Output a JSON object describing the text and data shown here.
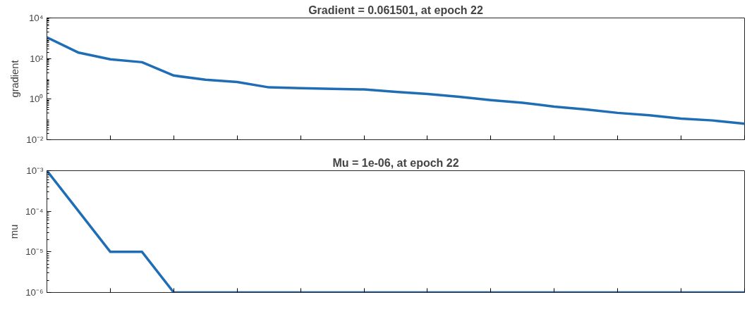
{
  "chart_data": [
    {
      "type": "line",
      "title": "Gradient = 0.061501, at epoch 22",
      "ylabel": "gradient",
      "log": "y",
      "grid": false,
      "marker": "none",
      "line_style": "solid",
      "tick_labels": "y",
      "categories": [
        null,
        null,
        null,
        null,
        null,
        null,
        null,
        null,
        null,
        null,
        null,
        null,
        null,
        null,
        null,
        null,
        null,
        null,
        null,
        null,
        null,
        null,
        null
      ],
      "series": [
        {
          "color": "#1f6eb5",
          "values": [
            1100,
            195,
            92,
            66,
            14.5,
            9,
            7,
            3.8,
            3.5,
            3.2,
            3.0,
            2.3,
            1.8,
            1.3,
            0.9,
            0.66,
            0.43,
            0.31,
            0.21,
            0.16,
            0.11,
            0.089,
            0.061501
          ]
        }
      ],
      "ylim": [
        0.01,
        10000
      ],
      "yticks": [
        {
          "value": 0.01,
          "label": "10⁻²"
        },
        {
          "value": 1,
          "label": "10⁰"
        },
        {
          "value": 100,
          "label": "10²"
        },
        {
          "value": 10000,
          "label": "10⁴"
        }
      ]
    },
    {
      "type": "line",
      "title": "Mu = 1e-06, at epoch 22",
      "ylabel": "mu",
      "log": "y",
      "grid": false,
      "marker": "none",
      "line_style": "solid",
      "tick_labels": "y",
      "categories": [
        null,
        null,
        null,
        null,
        null,
        null,
        null,
        null,
        null,
        null,
        null,
        null,
        null,
        null,
        null,
        null,
        null,
        null,
        null,
        null,
        null,
        null,
        null
      ],
      "series": [
        {
          "color": "#1f6eb5",
          "values": [
            0.001,
            0.0001,
            1e-05,
            1e-05,
            1e-06,
            1e-06,
            1e-06,
            1e-06,
            1e-06,
            1e-06,
            1e-06,
            1e-06,
            1e-06,
            1e-06,
            1e-06,
            1e-06,
            1e-06,
            1e-06,
            1e-06,
            1e-06,
            1e-06,
            1e-06,
            1e-06
          ]
        }
      ],
      "ylim": [
        1e-06,
        0.001
      ],
      "yticks": [
        {
          "value": 1e-06,
          "label": "10⁻⁶"
        },
        {
          "value": 1e-05,
          "label": "10⁻⁵"
        },
        {
          "value": 0.0001,
          "label": "10⁻⁴"
        },
        {
          "value": 0.001,
          "label": "10⁻³"
        }
      ]
    }
  ]
}
